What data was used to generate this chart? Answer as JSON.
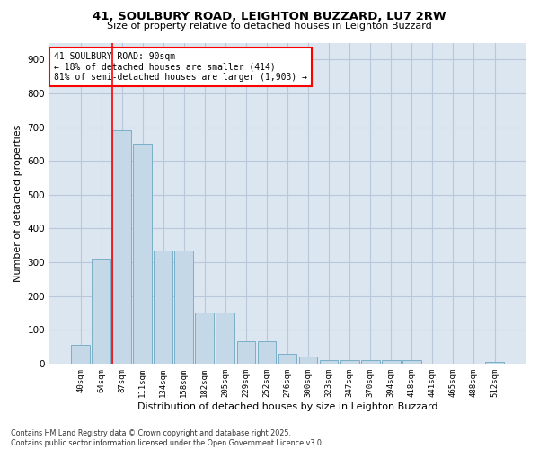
{
  "title_line1": "41, SOULBURY ROAD, LEIGHTON BUZZARD, LU7 2RW",
  "title_line2": "Size of property relative to detached houses in Leighton Buzzard",
  "xlabel": "Distribution of detached houses by size in Leighton Buzzard",
  "ylabel": "Number of detached properties",
  "bar_labels": [
    "40sqm",
    "64sqm",
    "87sqm",
    "111sqm",
    "134sqm",
    "158sqm",
    "182sqm",
    "205sqm",
    "229sqm",
    "252sqm",
    "276sqm",
    "300sqm",
    "323sqm",
    "347sqm",
    "370sqm",
    "394sqm",
    "418sqm",
    "441sqm",
    "465sqm",
    "488sqm",
    "512sqm"
  ],
  "bar_values": [
    55,
    310,
    690,
    650,
    335,
    335,
    150,
    150,
    65,
    65,
    30,
    20,
    10,
    10,
    10,
    10,
    10,
    0,
    0,
    0,
    5
  ],
  "bar_color": "#c5d8e8",
  "bar_edge_color": "#7aafc8",
  "vline_color": "red",
  "vline_x_index": 2,
  "annotation_box_text": "41 SOULBURY ROAD: 90sqm\n← 18% of detached houses are smaller (414)\n81% of semi-detached houses are larger (1,903) →",
  "annotation_box_color": "red",
  "grid_color": "#b8c8d8",
  "background_color": "#dce6f0",
  "footer_text": "Contains HM Land Registry data © Crown copyright and database right 2025.\nContains public sector information licensed under the Open Government Licence v3.0.",
  "ylim": [
    0,
    950
  ],
  "yticks": [
    0,
    100,
    200,
    300,
    400,
    500,
    600,
    700,
    800,
    900
  ]
}
